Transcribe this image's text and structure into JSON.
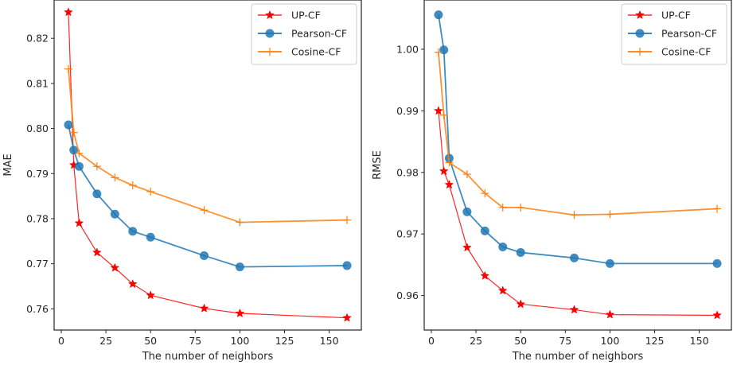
{
  "chart_data": [
    {
      "type": "line",
      "title": "",
      "xlabel": "The number of neighbors",
      "ylabel": "MAE",
      "xlim": [
        -4,
        168
      ],
      "ylim": [
        0.7553,
        0.8285
      ],
      "xticks": [
        0,
        25,
        50,
        75,
        100,
        125,
        150
      ],
      "yticks": [
        0.76,
        0.77,
        0.78,
        0.79,
        0.8,
        0.81,
        0.82
      ],
      "ytick_labels": [
        "0.76",
        "0.77",
        "0.78",
        "0.79",
        "0.80",
        "0.81",
        "0.82"
      ],
      "grid": false,
      "legend": "top-right",
      "x": [
        4,
        7,
        10,
        20,
        30,
        40,
        50,
        80,
        100,
        160
      ],
      "series": [
        {
          "name": "UP-CF",
          "color": "#ff0000",
          "marker": "star",
          "values": [
            0.8258,
            0.7919,
            0.779,
            0.7725,
            0.7691,
            0.7655,
            0.763,
            0.7601,
            0.759,
            0.758
          ]
        },
        {
          "name": "Pearson-CF",
          "color": "#1f77b4",
          "marker": "circle",
          "values": [
            0.8008,
            0.7952,
            0.7916,
            0.7855,
            0.781,
            0.7772,
            0.7759,
            0.7718,
            0.7693,
            0.7696
          ]
        },
        {
          "name": "Cosine-CF",
          "color": "#ff7f0e",
          "marker": "plus",
          "values": [
            0.8132,
            0.7991,
            0.7945,
            0.7916,
            0.7891,
            0.7874,
            0.786,
            0.7819,
            0.7792,
            0.7797
          ]
        }
      ]
    },
    {
      "type": "line",
      "title": "",
      "xlabel": "The number of neighbors",
      "ylabel": "RMSE",
      "xlim": [
        -4,
        168
      ],
      "ylim": [
        0.9544,
        1.008
      ],
      "xticks": [
        0,
        25,
        50,
        75,
        100,
        125,
        150
      ],
      "yticks": [
        0.96,
        0.97,
        0.98,
        0.99,
        1.0
      ],
      "ytick_labels": [
        "0.96",
        "0.97",
        "0.98",
        "0.99",
        "1.00"
      ],
      "grid": false,
      "legend": "top-right",
      "x": [
        4,
        7,
        10,
        20,
        30,
        40,
        50,
        80,
        100,
        160
      ],
      "series": [
        {
          "name": "UP-CF",
          "color": "#ff0000",
          "marker": "star",
          "values": [
            0.99,
            0.9802,
            0.978,
            0.9678,
            0.9632,
            0.9608,
            0.9586,
            0.9577,
            0.9569,
            0.9568
          ]
        },
        {
          "name": "Pearson-CF",
          "color": "#1f77b4",
          "marker": "circle",
          "values": [
            1.0056,
            0.9999,
            0.9823,
            0.9736,
            0.9705,
            0.9679,
            0.967,
            0.9661,
            0.9652,
            0.9652
          ]
        },
        {
          "name": "Cosine-CF",
          "color": "#ff7f0e",
          "marker": "plus",
          "values": [
            0.9995,
            0.9893,
            0.9816,
            0.9797,
            0.9766,
            0.9743,
            0.9743,
            0.9731,
            0.9732,
            0.9741
          ]
        }
      ]
    }
  ]
}
